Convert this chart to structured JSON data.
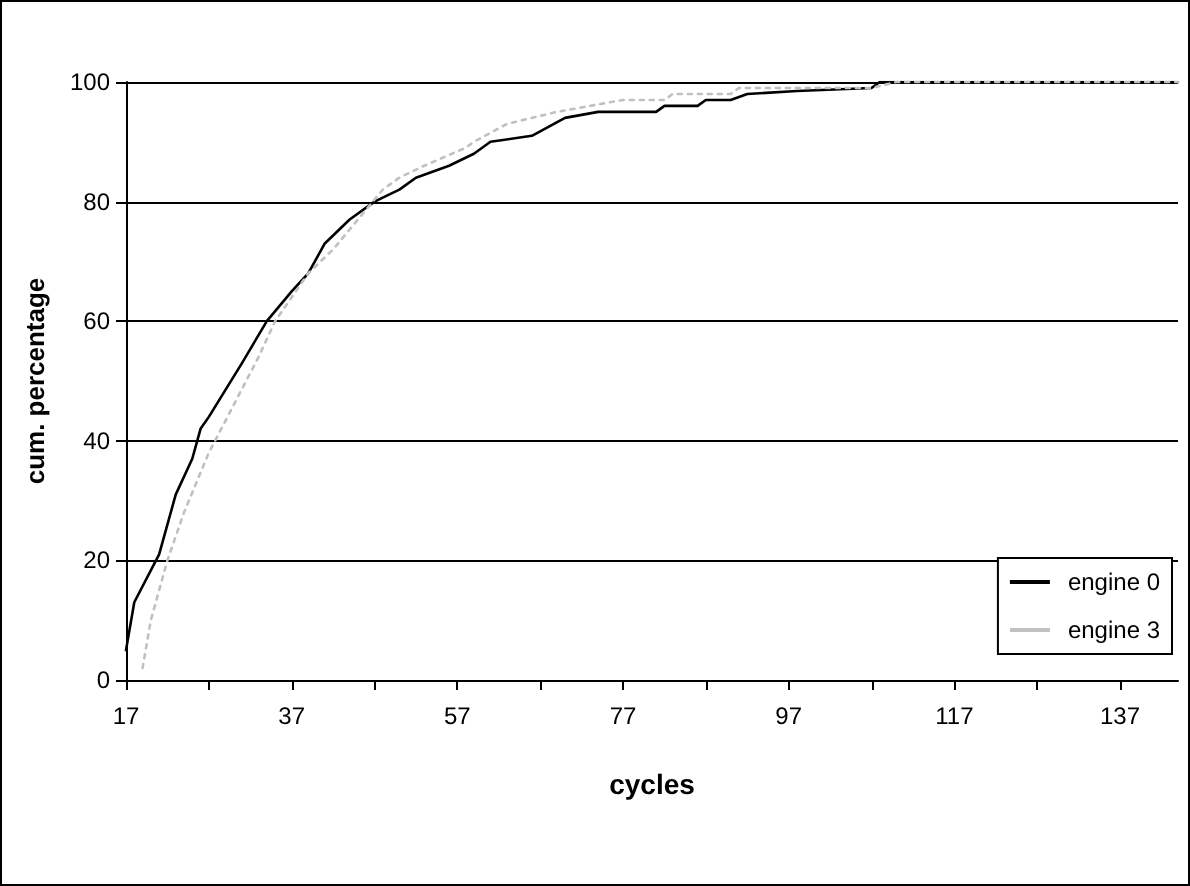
{
  "chart_data": {
    "type": "line",
    "xlabel": "cycles",
    "ylabel": "cum. percentage",
    "xlim": [
      17,
      144
    ],
    "xticks": [
      17,
      {
        "value": 27,
        "label": null
      },
      37,
      {
        "value": 47,
        "label": null
      },
      57,
      {
        "value": 67,
        "label": null
      },
      77,
      {
        "value": 87,
        "label": null
      },
      97,
      {
        "value": 107,
        "label": null
      },
      117,
      {
        "value": 127,
        "label": null
      },
      137
    ],
    "ylim": [
      0,
      100
    ],
    "yticks": [
      0,
      20,
      40,
      60,
      80,
      100
    ],
    "grid": "y",
    "legend": "bottom right",
    "marker": "none",
    "series": [
      {
        "name": "engine 0",
        "color": "#000000",
        "line_style": "solid",
        "x": [
          17,
          18,
          21,
          23,
          25,
          26,
          27,
          31,
          34,
          37,
          39,
          41,
          44,
          47,
          50,
          52,
          56,
          59,
          61,
          66,
          70,
          74,
          81,
          82,
          86,
          87,
          90,
          92,
          98,
          107,
          108,
          144
        ],
        "values": [
          5,
          13,
          21,
          31,
          37,
          42,
          44,
          53,
          60,
          65,
          68,
          73,
          77,
          80,
          82,
          84,
          86,
          88,
          90,
          91,
          94,
          95,
          95,
          96,
          96,
          97,
          97,
          98,
          98.5,
          99,
          100,
          100
        ]
      },
      {
        "name": "engine 3",
        "color": "#c0c0c0",
        "line_style": "dotted",
        "x": [
          19,
          20,
          22,
          24,
          27,
          30,
          33,
          35,
          39,
          42,
          45,
          48,
          50,
          53,
          58,
          59,
          63,
          69,
          73,
          77,
          82,
          83,
          90,
          91,
          98,
          107,
          110,
          144
        ],
        "values": [
          2,
          10,
          20,
          28,
          38,
          46,
          54,
          60,
          68,
          72,
          77,
          82,
          84,
          86,
          89,
          90,
          93,
          95,
          96,
          97,
          97,
          98,
          98,
          99,
          99,
          99,
          100,
          100
        ]
      }
    ]
  }
}
